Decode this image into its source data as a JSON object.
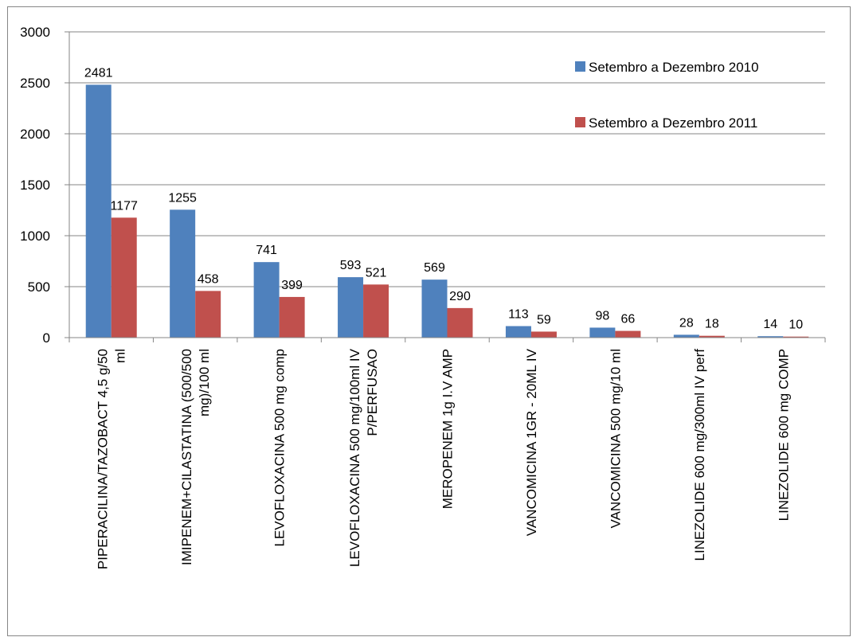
{
  "chart_data": {
    "type": "bar",
    "categories": [
      [
        "PIPERACILINA/TAZOBACT 4,5 g/50",
        "ml"
      ],
      [
        "IMIPENEM+CILASTATINA (500/500",
        "mg)/100 ml"
      ],
      [
        "LEVOFLOXACINA 500 mg comp"
      ],
      [
        "LEVOFLOXACINA 500 mg/100ml IV",
        "P/PERFUSAO"
      ],
      [
        "MEROPENEM 1g I.V AMP"
      ],
      [
        "VANCOMICINA 1GR - 20ML  IV"
      ],
      [
        "VANCOMICINA 500 mg/10 ml"
      ],
      [
        "LINEZOLIDE 600 mg/300ml IV perf"
      ],
      [
        "LINEZOLIDE 600 mg COMP"
      ]
    ],
    "series": [
      {
        "name": "Setembro a Dezembro 2010",
        "color": "#4f81bd",
        "values": [
          2481,
          1255,
          741,
          593,
          569,
          113,
          98,
          28,
          14
        ]
      },
      {
        "name": "Setembro a Dezembro 2011",
        "color": "#c0504d",
        "values": [
          1177,
          458,
          399,
          521,
          290,
          59,
          66,
          18,
          10
        ]
      }
    ],
    "ylim": [
      0,
      3000
    ],
    "yticks": [
      0,
      500,
      1000,
      1500,
      2000,
      2500,
      3000
    ],
    "grid": true,
    "legend_position": "top-right",
    "title": "",
    "xlabel": "",
    "ylabel": ""
  }
}
